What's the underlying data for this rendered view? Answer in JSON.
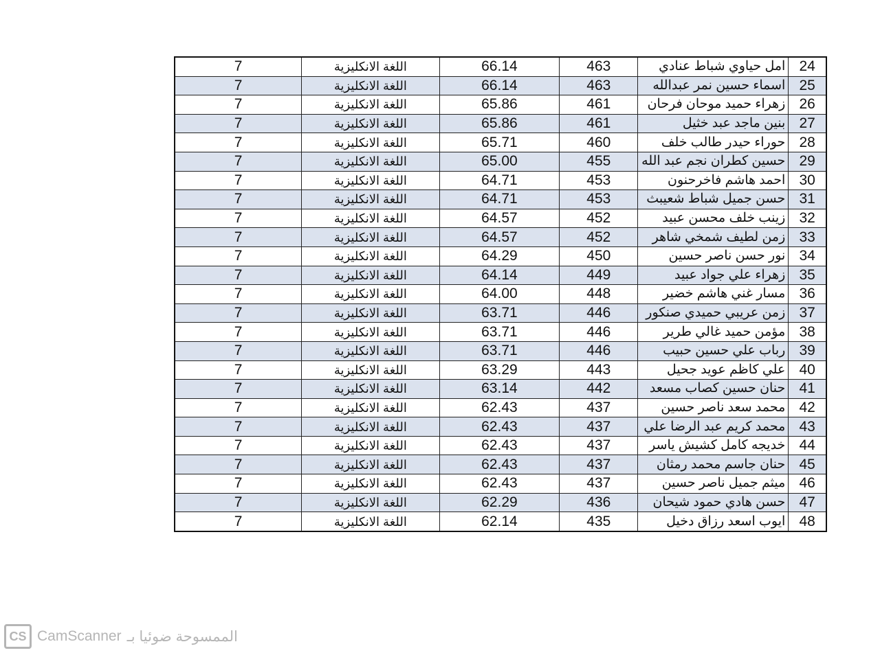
{
  "table": {
    "rows": [
      {
        "num": "24",
        "name": "امل حياوي شباط عنادي",
        "total": "463",
        "avg": "66.14",
        "subject": "اللغة الانكليزية",
        "grade": "7"
      },
      {
        "num": "25",
        "name": "اسماء حسين نمر عبدالله",
        "total": "463",
        "avg": "66.14",
        "subject": "اللغة الانكليزية",
        "grade": "7"
      },
      {
        "num": "26",
        "name": "زهراء حميد موحان فرحان",
        "total": "461",
        "avg": "65.86",
        "subject": "اللغة الانكليزية",
        "grade": "7"
      },
      {
        "num": "27",
        "name": "بنين ماجد عبد خثيل",
        "total": "461",
        "avg": "65.86",
        "subject": "اللغة الانكليزية",
        "grade": "7"
      },
      {
        "num": "28",
        "name": "حوراء حيدر طالب خلف",
        "total": "460",
        "avg": "65.71",
        "subject": "اللغة الانكليزية",
        "grade": "7"
      },
      {
        "num": "29",
        "name": "حسين كطران نجم عبد الله",
        "total": "455",
        "avg": "65.00",
        "subject": "اللغة الانكليزية",
        "grade": "7"
      },
      {
        "num": "30",
        "name": "احمد هاشم فاخرحنون",
        "total": "453",
        "avg": "64.71",
        "subject": "اللغة الانكليزية",
        "grade": "7"
      },
      {
        "num": "31",
        "name": "حسن جميل شباط شعيبث",
        "total": "453",
        "avg": "64.71",
        "subject": "اللغة الانكليزية",
        "grade": "7"
      },
      {
        "num": "32",
        "name": "زينب خلف محسن عبيد",
        "total": "452",
        "avg": "64.57",
        "subject": "اللغة الانكليزية",
        "grade": "7"
      },
      {
        "num": "33",
        "name": "زمن لطيف شمخي شاهر",
        "total": "452",
        "avg": "64.57",
        "subject": "اللغة الانكليزية",
        "grade": "7"
      },
      {
        "num": "34",
        "name": "نور حسن ناصر حسين",
        "total": "450",
        "avg": "64.29",
        "subject": "اللغة الانكليزية",
        "grade": "7"
      },
      {
        "num": "35",
        "name": "زهراء علي جواد عبيد",
        "total": "449",
        "avg": "64.14",
        "subject": "اللغة الانكليزية",
        "grade": "7"
      },
      {
        "num": "36",
        "name": "مسار غني هاشم خضير",
        "total": "448",
        "avg": "64.00",
        "subject": "اللغة الانكليزية",
        "grade": "7"
      },
      {
        "num": "37",
        "name": "زمن عريبي حميدي صنكور",
        "total": "446",
        "avg": "63.71",
        "subject": "اللغة الانكليزية",
        "grade": "7"
      },
      {
        "num": "38",
        "name": "مؤمن حميد غالي طرير",
        "total": "446",
        "avg": "63.71",
        "subject": "اللغة الانكليزية",
        "grade": "7"
      },
      {
        "num": "39",
        "name": "رباب علي حسين حبيب",
        "total": "446",
        "avg": "63.71",
        "subject": "اللغة الانكليزية",
        "grade": "7"
      },
      {
        "num": "40",
        "name": "علي كاظم عويد جحيل",
        "total": "443",
        "avg": "63.29",
        "subject": "اللغة الانكليزية",
        "grade": "7"
      },
      {
        "num": "41",
        "name": "حنان حسين كصاب مسعد",
        "total": "442",
        "avg": "63.14",
        "subject": "اللغة الانكليزية",
        "grade": "7"
      },
      {
        "num": "42",
        "name": "محمد سعد ناصر حسين",
        "total": "437",
        "avg": "62.43",
        "subject": "اللغة الانكليزية",
        "grade": "7"
      },
      {
        "num": "43",
        "name": "محمد كريم عبد الرضا علي",
        "total": "437",
        "avg": "62.43",
        "subject": "اللغة الانكليزية",
        "grade": "7"
      },
      {
        "num": "44",
        "name": "خديجه كامل كشيش ياسر",
        "total": "437",
        "avg": "62.43",
        "subject": "اللغة الانكليزية",
        "grade": "7"
      },
      {
        "num": "45",
        "name": "حنان جاسم محمد رمثان",
        "total": "437",
        "avg": "62.43",
        "subject": "اللغة الانكليزية",
        "grade": "7"
      },
      {
        "num": "46",
        "name": "ميثم جميل ناصر حسين",
        "total": "437",
        "avg": "62.43",
        "subject": "اللغة الانكليزية",
        "grade": "7"
      },
      {
        "num": "47",
        "name": "حسن هادي حمود شيحان",
        "total": "436",
        "avg": "62.29",
        "subject": "اللغة الانكليزية",
        "grade": "7"
      },
      {
        "num": "48",
        "name": "ايوب اسعد رزاق دخيل",
        "total": "435",
        "avg": "62.14",
        "subject": "اللغة الانكليزية",
        "grade": "7"
      }
    ],
    "shade_color": "#dbe2ee"
  },
  "watermark": {
    "logo": "CS",
    "brand": "CamScanner",
    "prefix": "الممسوحة ضوئيا بـ"
  }
}
